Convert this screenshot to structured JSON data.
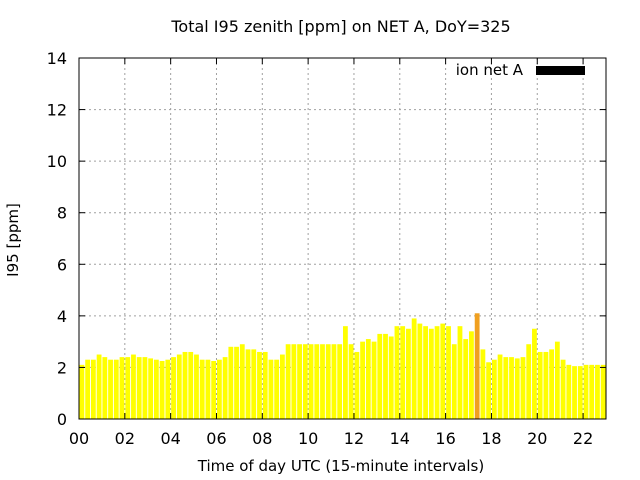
{
  "chart_data": {
    "type": "bar",
    "title": "Total I95 zenith [ppm] on NET A, DoY=325",
    "xlabel": "Time of day UTC (15-minute intervals)",
    "ylabel": "I95 [ppm]",
    "xlim": [
      0,
      23.0
    ],
    "ylim": [
      0,
      14
    ],
    "yticks": [
      0,
      2,
      4,
      6,
      8,
      10,
      12,
      14
    ],
    "xticks": [
      0,
      2,
      4,
      6,
      8,
      10,
      12,
      14,
      16,
      18,
      20,
      22
    ],
    "xtick_labels": [
      "00",
      "02",
      "04",
      "06",
      "08",
      "10",
      "12",
      "14",
      "16",
      "18",
      "20",
      "22"
    ],
    "grid": true,
    "legend": {
      "label": "ion net A",
      "color": "#000000",
      "position": "top-right"
    },
    "bar_interval_hours": 0.25,
    "series": [
      {
        "name": "ion net A",
        "x": [
          0,
          0.25,
          0.5,
          0.75,
          1,
          1.25,
          1.5,
          1.75,
          2,
          2.25,
          2.5,
          2.75,
          3,
          3.25,
          3.5,
          3.75,
          4,
          4.25,
          4.5,
          4.75,
          5,
          5.25,
          5.5,
          5.75,
          6,
          6.25,
          6.5,
          6.75,
          7,
          7.25,
          7.5,
          7.75,
          8,
          8.25,
          8.5,
          8.75,
          9,
          9.25,
          9.5,
          9.75,
          10,
          10.25,
          10.5,
          10.75,
          11,
          11.25,
          11.5,
          11.75,
          12,
          12.25,
          12.5,
          12.75,
          13,
          13.25,
          13.5,
          13.75,
          14,
          14.25,
          14.5,
          14.75,
          15,
          15.25,
          15.5,
          15.75,
          16,
          16.25,
          16.5,
          16.75,
          17,
          17.25,
          17.5,
          17.75,
          18,
          18.25,
          18.5,
          18.75,
          19,
          19.25,
          19.5,
          19.75,
          20,
          20.25,
          20.5,
          20.75,
          21,
          21.25,
          21.5,
          21.75,
          22,
          22.25,
          22.5,
          22.75
        ],
        "values": [
          2.1,
          2.3,
          2.3,
          2.5,
          2.4,
          2.3,
          2.3,
          2.4,
          2.4,
          2.5,
          2.4,
          2.4,
          2.35,
          2.3,
          2.25,
          2.3,
          2.4,
          2.5,
          2.6,
          2.6,
          2.5,
          2.3,
          2.3,
          2.25,
          2.3,
          2.4,
          2.8,
          2.8,
          2.9,
          2.7,
          2.7,
          2.6,
          2.6,
          2.3,
          2.3,
          2.5,
          2.9,
          2.9,
          2.9,
          2.9,
          2.9,
          2.9,
          2.9,
          2.9,
          2.9,
          2.9,
          3.6,
          2.9,
          2.6,
          3.0,
          3.1,
          3.0,
          3.3,
          3.3,
          3.2,
          3.6,
          3.6,
          3.5,
          3.9,
          3.7,
          3.6,
          3.5,
          3.6,
          3.7,
          3.6,
          2.9,
          3.6,
          3.1,
          3.4,
          4.1,
          2.7,
          2.2,
          2.3,
          2.5,
          2.4,
          2.4,
          2.35,
          2.4,
          2.9,
          3.5,
          2.6,
          2.6,
          2.7,
          3.0,
          2.3,
          2.1,
          2.05,
          2.05,
          2.1,
          2.1,
          2.1,
          2.1
        ],
        "highlight_index": 69,
        "colors": {
          "normal": "#ffff00",
          "highlight": "#f0a020"
        }
      }
    ]
  }
}
